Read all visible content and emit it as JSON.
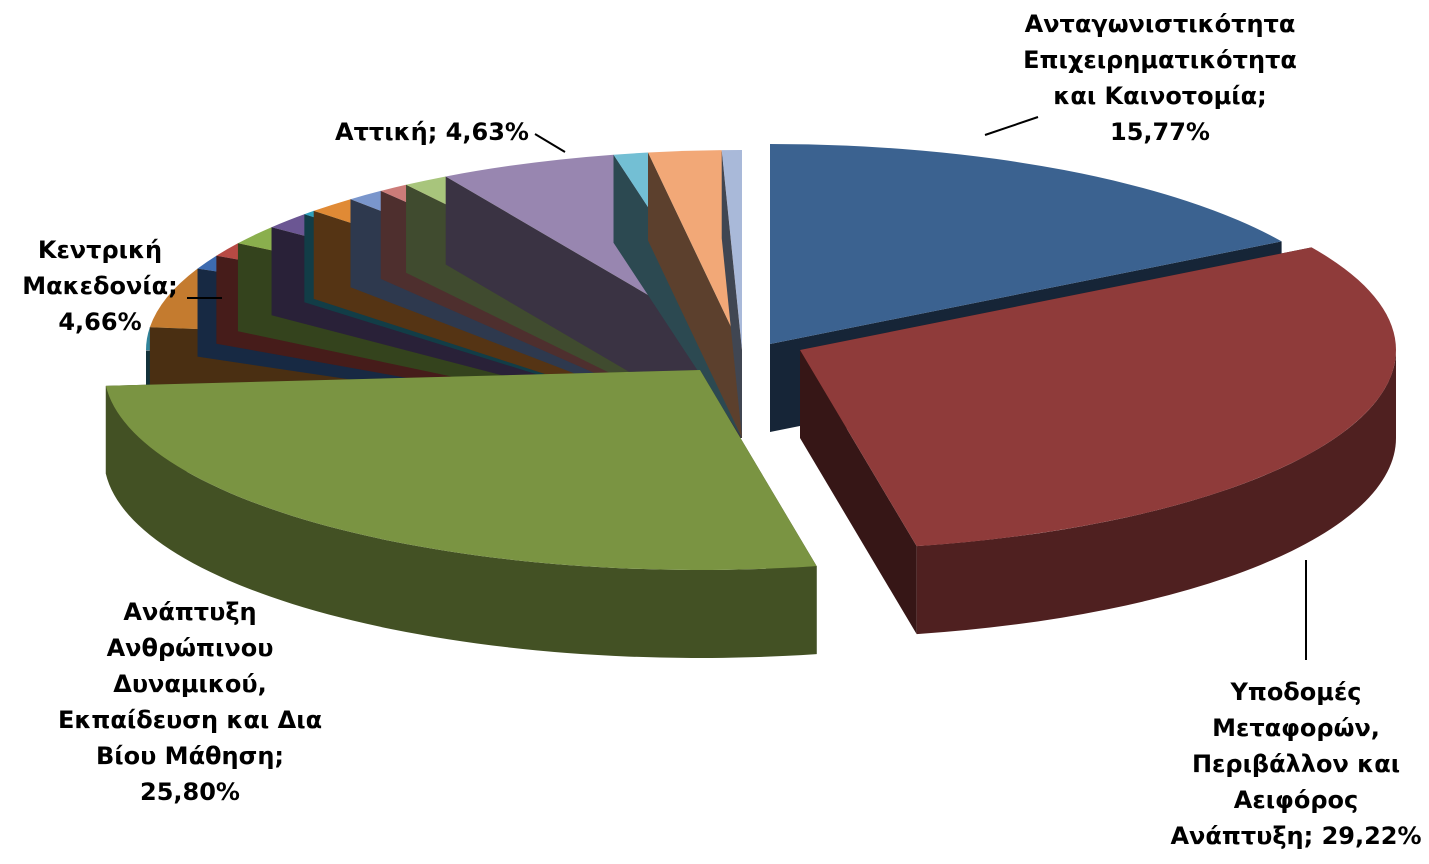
{
  "chart_data": {
    "type": "pie",
    "style": "3d-exploded",
    "slices": [
      {
        "label": "Ανταγωνιστικότητα Επιχειρηματικότητα και Καινοτομία",
        "value": 15.77,
        "color": "#3B6290",
        "exploded": true
      },
      {
        "label": "Υποδομές Μεταφορών, Περιβάλλον και Αειφόρος Ανάπτυξη",
        "value": 29.22,
        "color": "#8F3B3A",
        "exploded": true
      },
      {
        "label": "Ανάπτυξη Ανθρώπινου Δυναμικού, Εκπαίδευση και Δια Βίου Μάθηση",
        "value": 25.8,
        "color": "#7A9442",
        "exploded": true
      },
      {
        "label": "",
        "value": 1.2,
        "color": "#5C4A7C"
      },
      {
        "label": "",
        "value": 1.75,
        "color": "#31849B"
      },
      {
        "label": "Κεντρική Μακεδονία",
        "value": 4.66,
        "color": "#C47B2F"
      },
      {
        "label": "",
        "value": 1.1,
        "color": "#3D6BB0"
      },
      {
        "label": "",
        "value": 1.1,
        "color": "#B74A44"
      },
      {
        "label": "",
        "value": 1.5,
        "color": "#8AAF4D"
      },
      {
        "label": "",
        "value": 1.3,
        "color": "#6B5693"
      },
      {
        "label": "",
        "value": 0.35,
        "color": "#2FA0BC"
      },
      {
        "label": "",
        "value": 1.3,
        "color": "#E08A35"
      },
      {
        "label": "",
        "value": 1.0,
        "color": "#7A96CC"
      },
      {
        "label": "",
        "value": 0.8,
        "color": "#CC7C79"
      },
      {
        "label": "",
        "value": 1.2,
        "color": "#A8C57C"
      },
      {
        "label": "Αττική",
        "value": 4.63,
        "color": "#9886B0"
      },
      {
        "label": "",
        "value": 0.9,
        "color": "#73BFD4"
      },
      {
        "label": "",
        "value": 1.9,
        "color": "#F2A877"
      },
      {
        "label": "",
        "value": 0.52,
        "color": "#A9B9D9"
      }
    ],
    "data_labels": [
      {
        "slice": 0,
        "lines": [
          "Ανταγωνιστικότητα",
          "Επιχειρηματικότητα",
          "και Καινοτομία;",
          "15,77%"
        ]
      },
      {
        "slice": 1,
        "lines": [
          "Υποδομές",
          "Μεταφορών,",
          "Περιβάλλον και",
          "Αειφόρος",
          "Ανάπτυξη; 29,22%"
        ]
      },
      {
        "slice": 2,
        "lines": [
          "Ανάπτυξη",
          "Ανθρώπινου",
          "Δυναμικού,",
          "Εκπαίδευση και Δια",
          "Βίου Μάθηση;",
          "25,80%"
        ]
      },
      {
        "slice": 5,
        "lines": [
          "Κεντρική",
          "Μακεδονία;",
          "4,66%"
        ]
      },
      {
        "slice": 15,
        "lines": [
          "Αττική; 4,63%"
        ]
      }
    ],
    "legend": "none",
    "title": ""
  }
}
